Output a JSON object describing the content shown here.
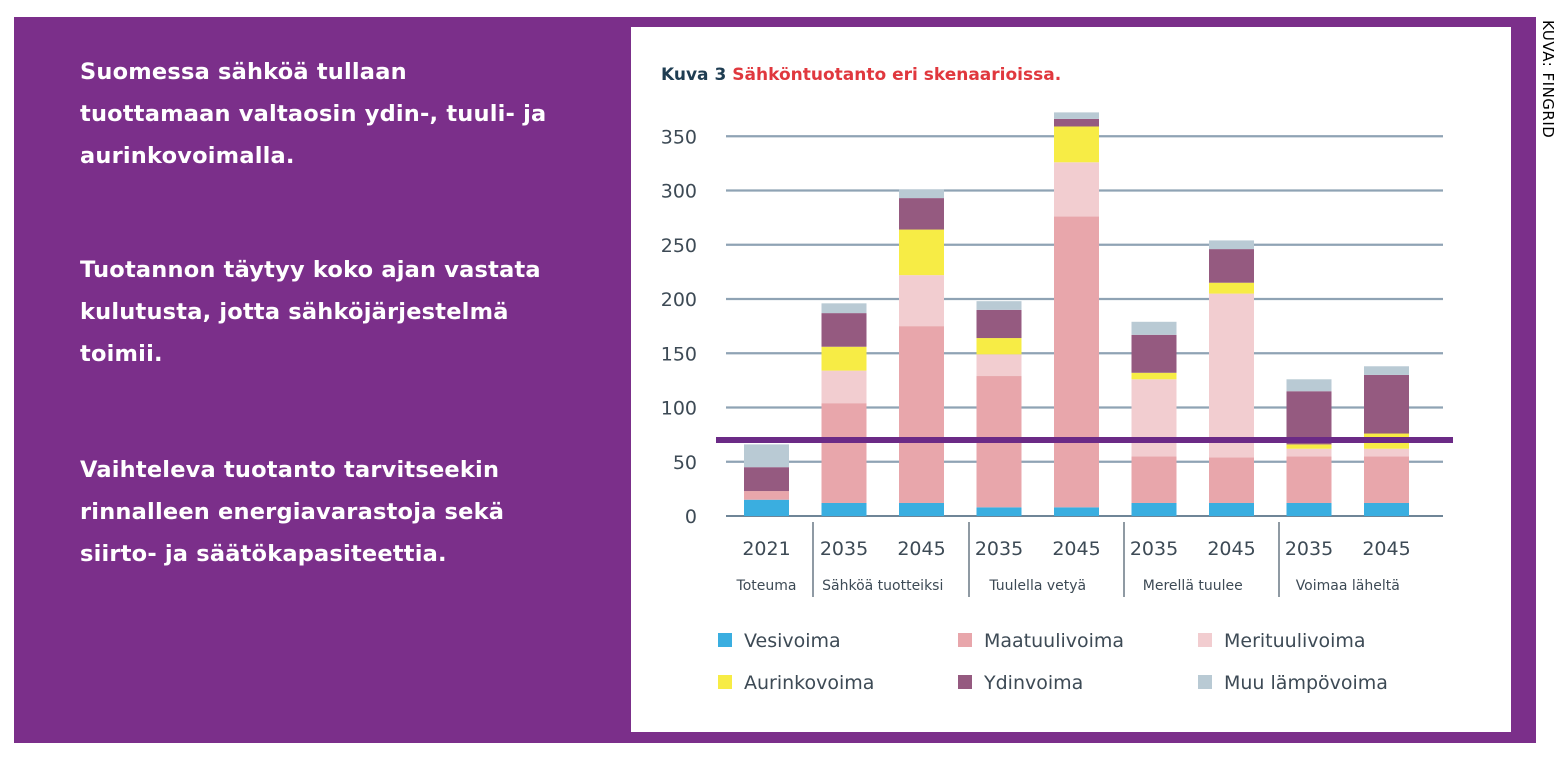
{
  "text_panel": {
    "paragraph_1": "Suomessa sähköä tullaan tuottamaan valtaosin ydin-, tuuli- ja aurinkovoimalla.",
    "paragraph_2": "Tuotannon täytyy koko ajan vastata kulutusta, jotta sähköjärjestelmä toimii.",
    "paragraph_3": "Vaihteleva tuotanto tarvitseekin rinnalleen energiavarastoja sekä siirto- ja säätökapasiteettia."
  },
  "credit": "KUVA: FINGRID",
  "colors": {
    "panel_background": "#7b2f8a",
    "highlight_line": "#6b2a86",
    "gridline": "#8fa3b4",
    "title_prefix": "#1f3d52",
    "title_main": "#e0383e"
  },
  "chart_data": {
    "type": "bar",
    "stacked": true,
    "title_prefix": "Kuva 3",
    "title": "Sähköntuotanto eri skenaarioissa.",
    "xlabel": "",
    "ylabel": "",
    "ylim": [
      0,
      380
    ],
    "yticks": [
      0,
      50,
      100,
      150,
      200,
      250,
      300,
      350
    ],
    "grid": true,
    "legend_position": "bottom",
    "categories": [
      "2021",
      "2035",
      "2045",
      "2035",
      "2045",
      "2035",
      "2045",
      "2035",
      "2045"
    ],
    "groups": [
      {
        "label": "Toteuma",
        "categories": [
          0
        ]
      },
      {
        "label": "Sähköä tuotteiksi",
        "categories": [
          1,
          2
        ]
      },
      {
        "label": "Tuulella vetyä",
        "categories": [
          3,
          4
        ]
      },
      {
        "label": "Merellä tuulee",
        "categories": [
          5,
          6
        ]
      },
      {
        "label": "Voimaa läheltä",
        "categories": [
          7,
          8
        ]
      }
    ],
    "series": [
      {
        "name": "Vesivoima",
        "color": "#3aaee0",
        "values": [
          15,
          12,
          12,
          8,
          8,
          12,
          12,
          12,
          12
        ]
      },
      {
        "name": "Maatuulivoima",
        "color": "#e8a6ab",
        "values": [
          8,
          92,
          163,
          121,
          268,
          43,
          42,
          43,
          43
        ]
      },
      {
        "name": "Merituulivoima",
        "color": "#f2cdd0",
        "values": [
          0,
          30,
          47,
          20,
          50,
          71,
          151,
          7,
          7
        ]
      },
      {
        "name": "Aurinkovoima",
        "color": "#f7ec45",
        "values": [
          0,
          22,
          42,
          15,
          33,
          6,
          10,
          4,
          14
        ]
      },
      {
        "name": "Ydinvoima",
        "color": "#955a80",
        "values": [
          22,
          31,
          29,
          26,
          7,
          35,
          31,
          49,
          54
        ]
      },
      {
        "name": "Muu lämpövoima",
        "color": "#b9cad4",
        "values": [
          21,
          9,
          8,
          8,
          6,
          12,
          8,
          11,
          8
        ]
      }
    ],
    "reference_line": {
      "value": 70,
      "color": "#6b2a86"
    }
  }
}
